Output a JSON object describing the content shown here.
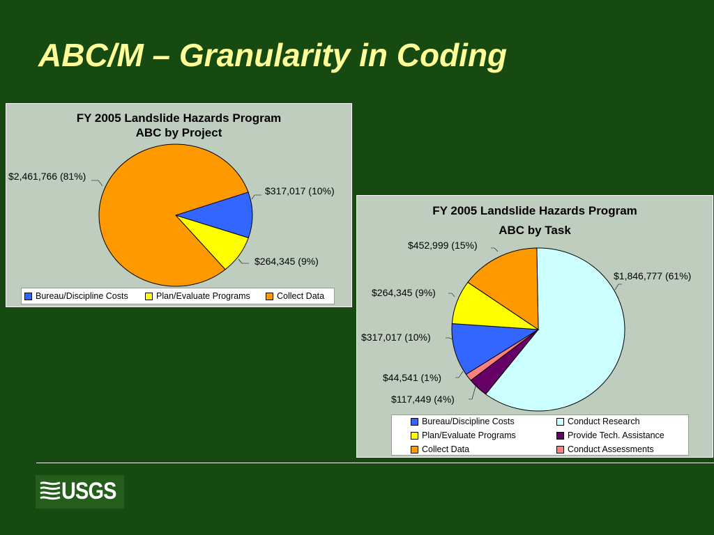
{
  "slide": {
    "title": "ABC/M – Granularity in Coding"
  },
  "logo": {
    "text": "USGS"
  },
  "chart_data": [
    {
      "type": "pie",
      "title": "FY 2005 Landslide Hazards Program",
      "subtitle": "ABC by Project",
      "start_angle_deg": 0,
      "direction": "counterclockwise-listed-clockwise",
      "slices": [
        {
          "name": "Bureau/Discipline Costs",
          "value": 317017,
          "percent": 10,
          "label": "$317,017 (10%)",
          "color": "#3366ff"
        },
        {
          "name": "Plan/Evaluate Programs",
          "value": 264345,
          "percent": 9,
          "label": "$264,345 (9%)",
          "color": "#ffff00"
        },
        {
          "name": "Collect Data",
          "value": 2461766,
          "percent": 81,
          "label": "$2,461,766 (81%)",
          "color": "#ff9900"
        }
      ],
      "legend": [
        "Bureau/Discipline Costs",
        "Plan/Evaluate Programs",
        "Collect Data"
      ],
      "legend_placement": "bottom"
    },
    {
      "type": "pie",
      "title": "FY 2005 Landslide Hazards Program",
      "subtitle": "ABC by Task",
      "slices": [
        {
          "name": "Conduct Research",
          "value": 1846777,
          "percent": 61,
          "label": "$1,846,777 (61%)",
          "color": "#ccffff"
        },
        {
          "name": "Provide Tech. Assistance",
          "value": 117449,
          "percent": 4,
          "label": "$117,449 (4%)",
          "color": "#660066"
        },
        {
          "name": "Conduct Assessments",
          "value": 44541,
          "percent": 1,
          "label": "$44,541 (1%)",
          "color": "#ff8080"
        },
        {
          "name": "Bureau/Discipline Costs",
          "value": 317017,
          "percent": 10,
          "label": "$317,017 (10%)",
          "color": "#3366ff"
        },
        {
          "name": "Plan/Evaluate Programs",
          "value": 264345,
          "percent": 9,
          "label": "$264,345 (9%)",
          "color": "#ffff00"
        },
        {
          "name": "Collect Data",
          "value": 452999,
          "percent": 15,
          "label": "$452,999 (15%)",
          "color": "#ff9900"
        }
      ],
      "legend": [
        "Bureau/Discipline Costs",
        "Conduct Research",
        "Plan/Evaluate Programs",
        "Provide Tech. Assistance",
        "Collect Data",
        "Conduct Assessments"
      ],
      "legend_placement": "bottom"
    }
  ]
}
